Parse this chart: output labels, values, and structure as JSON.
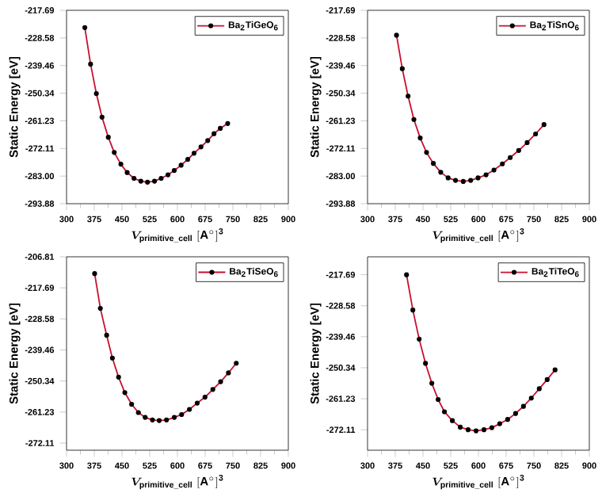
{
  "chart_data": [
    {
      "type": "line",
      "ylabel": "Static Energy [eV]",
      "xlabel": "\\boldsymbol{V}_{\\mathbf{primitive\\_cell}}\\ \\mathbf{[A^{\\circ}]^{3}}",
      "marker": "circle",
      "legend": "top right",
      "grid": false,
      "xlim": [
        300,
        900
      ],
      "xticks": [
        300,
        375,
        450,
        525,
        600,
        675,
        750,
        825,
        900
      ],
      "ylim": [
        -293.88,
        -217.69
      ],
      "yticks": [
        -293.88,
        {
          "value": -283.0,
          "label": "-283.00"
        },
        -272.11,
        -261.23,
        -250.34,
        -239.46,
        -228.58,
        -217.69
      ],
      "series": [
        {
          "name": "Ba$_{2}$TiGeO$_{6}$",
          "color": "#c8102e",
          "x": [
            349.5,
            365,
            380.7,
            396,
            413,
            429,
            447,
            464,
            482.5,
            501,
            519,
            538,
            556,
            574.5,
            591.5,
            610,
            628,
            645,
            663.7,
            682,
            699,
            716,
            736
          ],
          "values": [
            -224.5,
            -238.9,
            -250.5,
            -259.8,
            -267.7,
            -273.7,
            -278.3,
            -281.6,
            -283.9,
            -285.0,
            -285.4,
            -285.0,
            -283.9,
            -282.5,
            -280.8,
            -278.7,
            -276.4,
            -274.0,
            -271.5,
            -269.0,
            -266.3,
            -264.2,
            -262.3
          ]
        }
      ]
    },
    {
      "type": "line",
      "ylabel": "Static Energy [eV]",
      "xlabel": "\\boldsymbol{V}_{\\mathbf{primitive\\_cell}}\\ \\mathbf{[A^{\\circ}]^{3}}",
      "marker": "circle",
      "legend": "top right",
      "grid": false,
      "xlim": [
        300,
        900
      ],
      "xticks": [
        300,
        375,
        450,
        525,
        600,
        675,
        750,
        825,
        900
      ],
      "ylim": [
        -293.88,
        -217.69
      ],
      "yticks": [
        -293.88,
        {
          "value": -283.0,
          "label": "-283.00"
        },
        -272.11,
        -261.23,
        -250.34,
        -239.46,
        -228.58,
        -217.69
      ],
      "series": [
        {
          "name": "Ba$_{2}$TiSnO$_{6}$",
          "color": "#c8102e",
          "x": [
            378.4,
            394,
            409.7,
            425.4,
            442.5,
            459.6,
            478,
            498,
            518,
            538,
            559,
            579,
            599,
            620.6,
            642,
            664.8,
            686,
            709,
            731.8,
            754.6,
            777.4
          ],
          "values": [
            -227.5,
            -240.7,
            -251.5,
            -260.7,
            -268.0,
            -273.7,
            -278.0,
            -281.5,
            -283.7,
            -284.7,
            -285.1,
            -284.7,
            -283.7,
            -282.5,
            -280.6,
            -278.2,
            -275.7,
            -272.9,
            -269.8,
            -266.4,
            -262.7
          ]
        }
      ]
    },
    {
      "type": "line",
      "ylabel": "Static Energy [eV]",
      "xlabel": "\\boldsymbol{V}_{\\mathbf{primitive\\_cell}}\\ \\mathbf{[A^{\\circ}]^{3}}",
      "marker": "circle",
      "legend": "top right",
      "grid": false,
      "xlim": [
        300,
        900
      ],
      "xticks": [
        300,
        375,
        450,
        525,
        600,
        675,
        750,
        825,
        900
      ],
      "ylim": [
        -274.6,
        -206.81
      ],
      "yticks": [
        -272.11,
        -261.23,
        -250.34,
        -239.46,
        -228.58,
        -217.69,
        -206.81
      ],
      "series": [
        {
          "name": "Ba$_{2}$TiSeO$_{6}$",
          "color": "#c8102e",
          "x": [
            376,
            391.5,
            408.5,
            424,
            440.8,
            457.7,
            476,
            494.4,
            512.7,
            532.4,
            550.7,
            570.4,
            591.5,
            611.3,
            632.4,
            653.5,
            674.6,
            695.8,
            716.9,
            738,
            759.2
          ],
          "values": [
            -212.7,
            -224.9,
            -234.3,
            -242.3,
            -249.0,
            -254.4,
            -258.5,
            -261.4,
            -263.1,
            -264.0,
            -264.2,
            -264.0,
            -263.1,
            -262.1,
            -260.3,
            -258.1,
            -256.0,
            -253.3,
            -250.6,
            -247.5,
            -244.1
          ]
        }
      ]
    },
    {
      "type": "line",
      "ylabel": "Static Energy [eV]",
      "xlabel": "\\boldsymbol{V}_{\\mathbf{primitive\\_cell}}\\ \\mathbf{[A^{\\circ}]^{3}}",
      "marker": "circle",
      "legend": "top right",
      "grid": false,
      "xlim": [
        300,
        900
      ],
      "xticks": [
        300,
        375,
        450,
        525,
        600,
        675,
        750,
        825,
        900
      ],
      "ylim": [
        -279.3,
        -211.4
      ],
      "yticks": [
        -272.11,
        -261.23,
        -250.34,
        -239.46,
        -228.58,
        -217.69
      ],
      "series": [
        {
          "name": "Ba$_{2}$TiTeO$_{6}$",
          "color": "#c8102e",
          "x": [
            405.5,
            422.6,
            439.7,
            456.8,
            473.9,
            491,
            508,
            529.4,
            550.8,
            572,
            593.6,
            615,
            636.3,
            657.7,
            679,
            700.5,
            721.8,
            743,
            764.6,
            786,
            807.3
          ],
          "values": [
            -217.7,
            -230.1,
            -240.3,
            -248.8,
            -255.8,
            -261.5,
            -265.8,
            -268.9,
            -271.2,
            -272.1,
            -272.5,
            -272.1,
            -271.4,
            -270.0,
            -268.5,
            -266.4,
            -263.9,
            -261.0,
            -257.7,
            -254.5,
            -251.1
          ]
        }
      ]
    }
  ]
}
